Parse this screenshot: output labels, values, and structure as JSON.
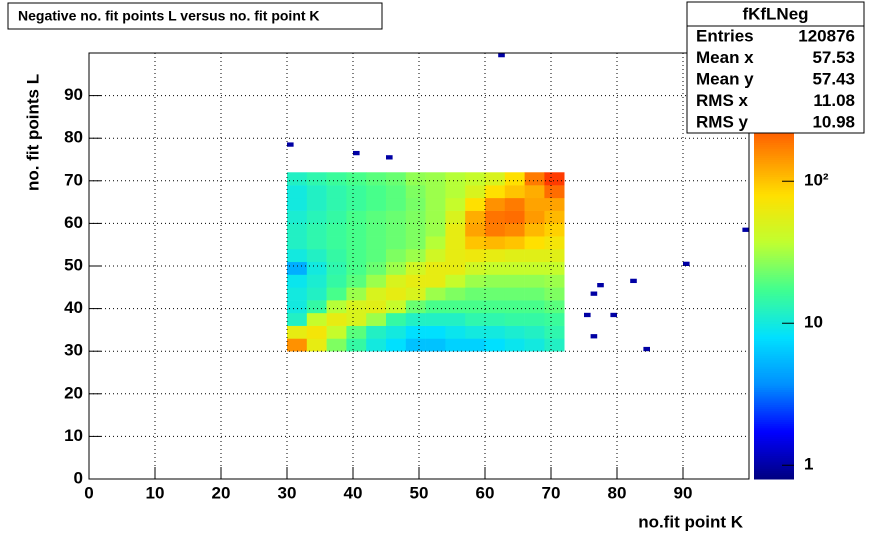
{
  "chart_data": {
    "type": "heatmap",
    "title": "Negative no. fit points L versus no. fit point K",
    "x_label": "no.fit point K",
    "y_label": "no. fit points  L",
    "xlim": [
      0,
      100
    ],
    "ylim": [
      0,
      100
    ],
    "xticks": [
      0,
      10,
      20,
      30,
      40,
      50,
      60,
      70,
      80,
      90
    ],
    "yticks": [
      0,
      10,
      20,
      30,
      40,
      50,
      60,
      70,
      80,
      90
    ],
    "grid": true,
    "zlim": [
      0.8,
      800
    ],
    "zscale": "log",
    "zticks": [
      1,
      10,
      {
        "value": 100,
        "label": "10²"
      }
    ],
    "palette": [
      "#00007f",
      "#0000ff",
      "#0090ff",
      "#00e0ff",
      "#40ff90",
      "#c0ff30",
      "#ffe000",
      "#ff8000",
      "#ff2000",
      "#800000"
    ],
    "xbins": [
      30,
      33,
      36,
      39,
      42,
      45,
      48,
      51,
      54,
      57,
      60,
      63,
      66,
      69,
      72
    ],
    "ybins": [
      30,
      33,
      36,
      39,
      42,
      45,
      48,
      51,
      54,
      57,
      60,
      63,
      66,
      69,
      72
    ],
    "z": [
      [
        150,
        60,
        25,
        15,
        10,
        8,
        6,
        6,
        7,
        7,
        8,
        9,
        10,
        12
      ],
      [
        60,
        70,
        40,
        20,
        12,
        10,
        8,
        8,
        9,
        10,
        10,
        11,
        12,
        14
      ],
      [
        12,
        40,
        60,
        50,
        30,
        15,
        12,
        12,
        12,
        14,
        14,
        15,
        15,
        16
      ],
      [
        10,
        15,
        35,
        50,
        55,
        40,
        22,
        18,
        18,
        18,
        18,
        18,
        18,
        20
      ],
      [
        10,
        12,
        18,
        30,
        50,
        60,
        50,
        30,
        25,
        22,
        22,
        22,
        22,
        25
      ],
      [
        9,
        11,
        15,
        20,
        30,
        50,
        60,
        60,
        40,
        30,
        28,
        28,
        28,
        30
      ],
      [
        5,
        10,
        14,
        18,
        22,
        30,
        45,
        60,
        60,
        45,
        40,
        40,
        40,
        40
      ],
      [
        10,
        12,
        15,
        18,
        20,
        25,
        30,
        45,
        60,
        65,
        60,
        55,
        55,
        55
      ],
      [
        12,
        14,
        16,
        18,
        20,
        22,
        25,
        35,
        60,
        100,
        110,
        100,
        80,
        70
      ],
      [
        12,
        14,
        16,
        18,
        20,
        22,
        25,
        30,
        60,
        130,
        180,
        160,
        110,
        90
      ],
      [
        11,
        13,
        15,
        18,
        20,
        22,
        25,
        30,
        50,
        120,
        190,
        200,
        140,
        110
      ],
      [
        10,
        12,
        14,
        16,
        18,
        20,
        24,
        30,
        40,
        80,
        150,
        180,
        130,
        130
      ],
      [
        10,
        12,
        14,
        16,
        18,
        20,
        25,
        30,
        35,
        50,
        80,
        100,
        120,
        200
      ],
      [
        12,
        14,
        16,
        18,
        20,
        22,
        28,
        30,
        35,
        40,
        50,
        80,
        180,
        300
      ]
    ],
    "points": {
      "x": [
        30,
        40,
        45,
        62,
        99,
        90,
        82,
        77,
        76,
        75,
        79,
        76,
        84
      ],
      "y": [
        78,
        76,
        75,
        99,
        58,
        50,
        46,
        45,
        43,
        38,
        38,
        33,
        30
      ],
      "counts": [
        1,
        1,
        1,
        1,
        1,
        1,
        1,
        1,
        1,
        1,
        1,
        1,
        1
      ]
    },
    "stats": {
      "name": "fKfLNeg",
      "rows": [
        {
          "label": "Entries",
          "value": 120876
        },
        {
          "label": "Mean x",
          "value": 57.53
        },
        {
          "label": "Mean y",
          "value": 57.43
        },
        {
          "label": "RMS x",
          "value": 11.08
        },
        {
          "label": "RMS y",
          "value": 10.98
        }
      ]
    }
  }
}
